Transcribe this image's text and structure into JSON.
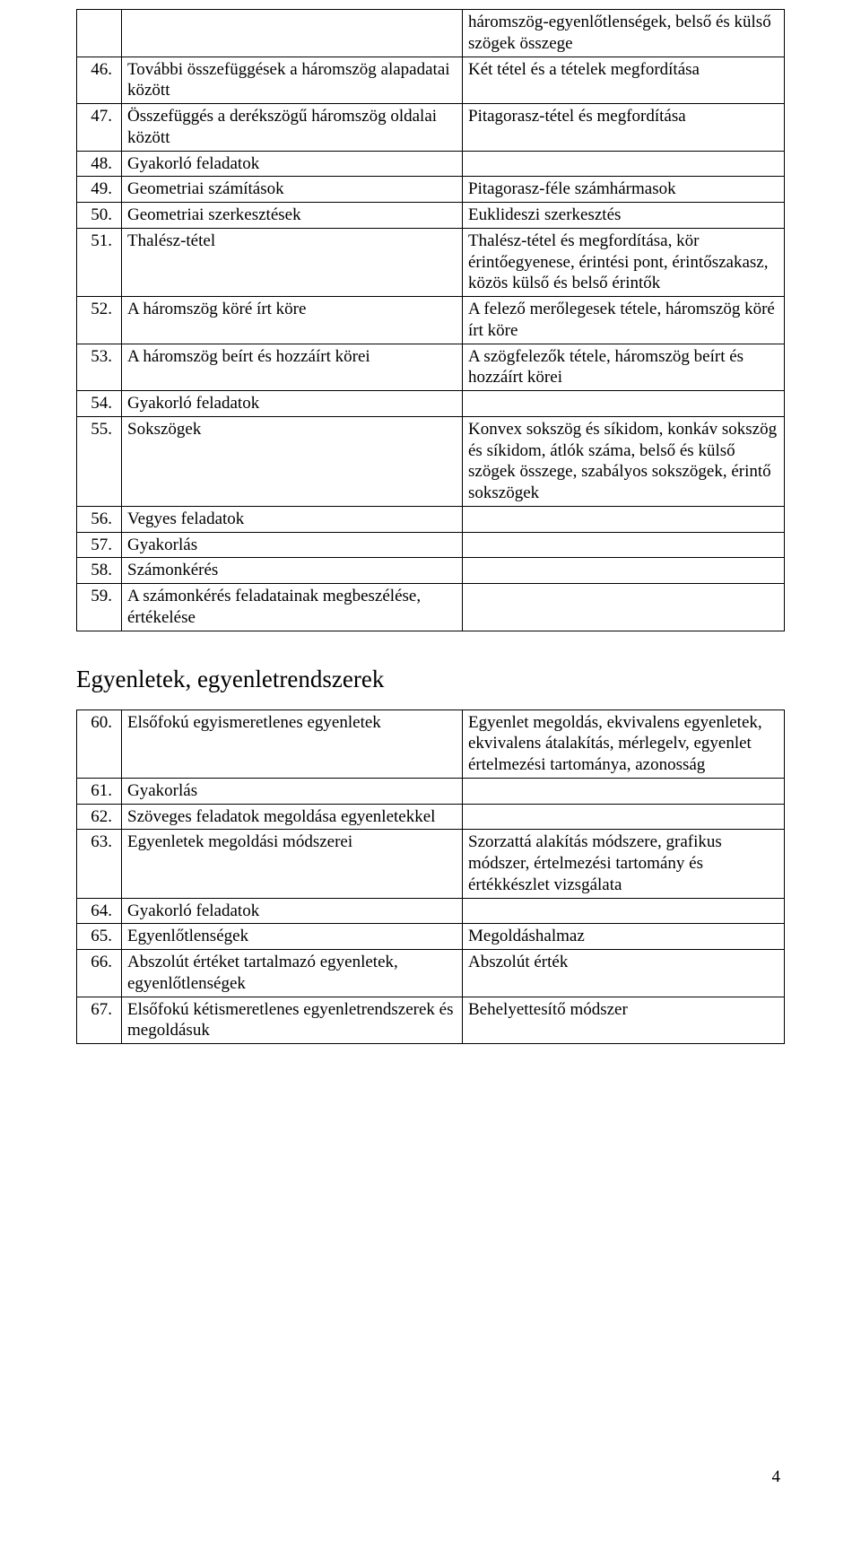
{
  "table1": {
    "rows": [
      {
        "num": "",
        "left": "",
        "right": "háromszög-egyenlőtlenségek, belső és külső szögek összege"
      },
      {
        "num": "46.",
        "left": "További összefüggések a háromszög alapadatai között",
        "right": "Két tétel és a tételek megfordítása"
      },
      {
        "num": "47.",
        "left": "Összefüggés a derékszögű háromszög oldalai között",
        "right": "Pitagorasz-tétel és megfordítása"
      },
      {
        "num": "48.",
        "left": "Gyakorló feladatok",
        "right": ""
      },
      {
        "num": "49.",
        "left": "Geometriai számítások",
        "right": "Pitagorasz-féle számhármasok"
      },
      {
        "num": "50.",
        "left": "Geometriai szerkesztések",
        "right": "Euklideszi szerkesztés"
      },
      {
        "num": "51.",
        "left": "Thalész-tétel",
        "right": "Thalész-tétel és megfordítása, kör érintőegyenese, érintési pont, érintőszakasz, közös külső és belső érintők"
      },
      {
        "num": "52.",
        "left": "A háromszög köré írt köre",
        "right": "A felező merőlegesek tétele, háromszög köré írt köre"
      },
      {
        "num": "53.",
        "left": "A háromszög beírt és hozzáírt körei",
        "right": "A szögfelezők tétele, háromszög beírt és hozzáírt körei"
      },
      {
        "num": "54.",
        "left": "Gyakorló feladatok",
        "right": ""
      },
      {
        "num": "55.",
        "left": "Sokszögek",
        "right": "Konvex sokszög és síkidom, konkáv sokszög és síkidom, átlók száma, belső és külső szögek összege, szabályos sokszögek, érintő sokszögek"
      },
      {
        "num": "56.",
        "left": "Vegyes feladatok",
        "right": ""
      },
      {
        "num": "57.",
        "left": "Gyakorlás",
        "right": ""
      },
      {
        "num": "58.",
        "left": "Számonkérés",
        "right": ""
      },
      {
        "num": "59.",
        "left": "A számonkérés feladatainak megbeszélése, értékelése",
        "right": ""
      }
    ]
  },
  "section_heading": "Egyenletek, egyenletrendszerek",
  "table2": {
    "rows": [
      {
        "num": "60.",
        "left": "Elsőfokú egyismeretlenes egyenletek",
        "right": "Egyenlet megoldás, ekvivalens egyenletek, ekvivalens átalakítás, mérlegelv, egyenlet értelmezési tartománya, azonosság"
      },
      {
        "num": "61.",
        "left": "Gyakorlás",
        "right": ""
      },
      {
        "num": "62.",
        "left": "Szöveges feladatok megoldása egyenletekkel",
        "right": ""
      },
      {
        "num": "63.",
        "left": "Egyenletek megoldási módszerei",
        "right": "Szorzattá alakítás módszere, grafikus módszer, értelmezési tartomány és értékkészlet vizsgálata"
      },
      {
        "num": "64.",
        "left": "Gyakorló feladatok",
        "right": ""
      },
      {
        "num": "65.",
        "left": "Egyenlőtlenségek",
        "right": "Megoldáshalmaz"
      },
      {
        "num": "66.",
        "left": "Abszolút értéket tartalmazó egyenletek, egyenlőtlenségek",
        "right": "Abszolút érték"
      },
      {
        "num": "67.",
        "left": "Elsőfokú kétismeretlenes egyenletrendszerek és megoldásuk",
        "right": "Behelyettesítő módszer"
      }
    ]
  },
  "page_number": "4"
}
